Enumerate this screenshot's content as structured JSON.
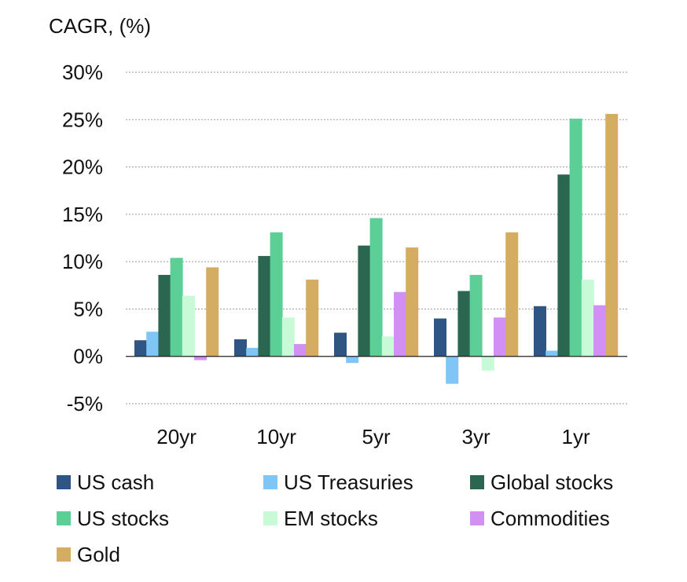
{
  "chart_data": {
    "type": "bar",
    "title": "",
    "xlabel": "",
    "ylabel": "CAGR, (%)",
    "ylim": [
      -5,
      30
    ],
    "yticks": [
      -5,
      0,
      5,
      10,
      15,
      20,
      25,
      30
    ],
    "ytick_labels": [
      "-5%",
      "0%",
      "5%",
      "10%",
      "15%",
      "20%",
      "25%",
      "30%"
    ],
    "grid": true,
    "legend_position": "bottom",
    "categories": [
      "20yr",
      "10yr",
      "5yr",
      "3yr",
      "1yr"
    ],
    "series": [
      {
        "name": "US cash",
        "color": "#2e5583",
        "values": [
          1.7,
          1.8,
          2.5,
          4.0,
          5.3
        ]
      },
      {
        "name": "US Treasuries",
        "color": "#7fc6f7",
        "values": [
          2.6,
          0.9,
          -0.7,
          -2.9,
          0.6
        ]
      },
      {
        "name": "Global stocks",
        "color": "#2a6650",
        "values": [
          8.6,
          10.6,
          11.7,
          6.9,
          19.2
        ]
      },
      {
        "name": "US stocks",
        "color": "#5bcf96",
        "values": [
          10.4,
          13.1,
          14.6,
          8.6,
          25.1
        ]
      },
      {
        "name": "EM stocks",
        "color": "#c8fad7",
        "values": [
          6.4,
          4.1,
          2.1,
          -1.5,
          8.1
        ]
      },
      {
        "name": "Commodities",
        "color": "#d390f4",
        "values": [
          -0.4,
          1.3,
          6.8,
          4.1,
          5.4
        ]
      },
      {
        "name": "Gold",
        "color": "#d5ad62",
        "values": [
          9.4,
          8.1,
          11.5,
          13.1,
          25.6
        ]
      }
    ]
  }
}
